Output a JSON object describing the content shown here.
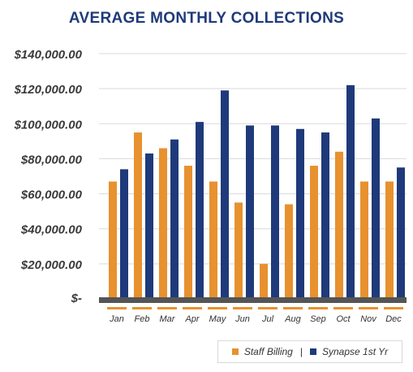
{
  "chart_data": {
    "type": "bar",
    "title": "AVERAGE MONTHLY COLLECTIONS",
    "categories": [
      "Jan",
      "Feb",
      "Mar",
      "Apr",
      "May",
      "Jun",
      "Jul",
      "Aug",
      "Sep",
      "Oct",
      "Nov",
      "Dec"
    ],
    "series": [
      {
        "name": "Staff Billing",
        "color": "#e8912f",
        "values": [
          67000,
          95000,
          86000,
          76000,
          67000,
          55000,
          20000,
          54000,
          76000,
          84000,
          67000,
          67000
        ]
      },
      {
        "name": "Synapse 1st Yr",
        "color": "#1f3a7a",
        "values": [
          74000,
          83000,
          91000,
          101000,
          119000,
          99000,
          99000,
          97000,
          95000,
          122000,
          103000,
          75000
        ]
      }
    ],
    "ylim": [
      0,
      140000
    ],
    "yticks": [
      "$-",
      "$20,000.00",
      "$40,000.00",
      "$60,000.00",
      "$80,000.00",
      "$100,000.00",
      "$120,000.00",
      "$140,000.00"
    ],
    "ytick_values": [
      0,
      20000,
      40000,
      60000,
      80000,
      100000,
      120000,
      140000
    ],
    "grid": true,
    "legend_position": "bottom-right",
    "legend_separator": "|"
  }
}
